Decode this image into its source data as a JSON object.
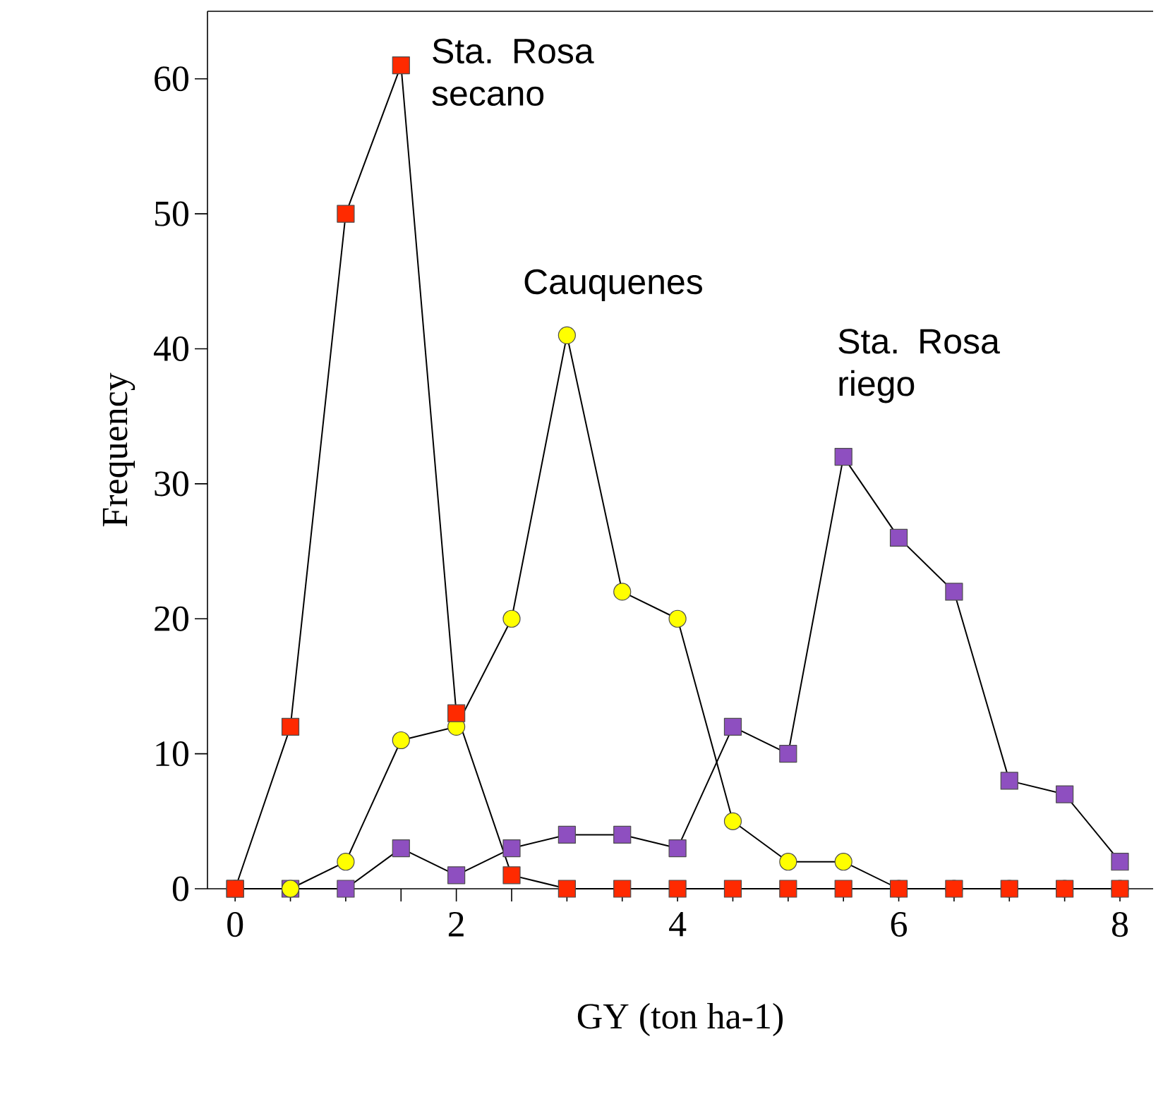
{
  "chart_data": {
    "type": "line",
    "xlabel": "GY (ton ha-1)",
    "ylabel": "Frequency",
    "x": [
      0,
      0.5,
      1,
      1.5,
      2,
      2.5,
      3,
      3.5,
      4,
      4.5,
      5,
      5.5,
      6,
      6.5,
      7,
      7.5,
      8
    ],
    "series": [
      {
        "name": "Sta. Rosa riego",
        "color": "#8e4fc0",
        "marker": "square",
        "values": [
          0,
          0,
          0,
          3,
          1,
          3,
          4,
          4,
          3,
          12,
          10,
          32,
          26,
          22,
          8,
          7,
          2
        ]
      },
      {
        "name": "Cauquenes",
        "color": "#ffff00",
        "marker": "circle",
        "values": [
          0,
          0,
          2,
          11,
          12,
          20,
          41,
          22,
          20,
          5,
          2,
          2,
          0,
          0,
          0,
          0,
          0
        ]
      },
      {
        "name": "Sta. Rosa secano",
        "color": "#ff2a00",
        "marker": "square",
        "values": [
          0,
          12,
          50,
          61,
          13,
          1,
          0,
          0,
          0,
          0,
          0,
          0,
          0,
          0,
          0,
          0,
          0
        ]
      }
    ],
    "xlim": [
      -0.25,
      8.3
    ],
    "ylim": [
      0,
      65
    ],
    "xticks": [
      0,
      {
        "value": 0.5,
        "label": null
      },
      2,
      {
        "value": 1.5,
        "label": null
      },
      {
        "value": 1,
        "label": null
      },
      {
        "value": 2.5,
        "label": null
      },
      {
        "value": 3,
        "label": null
      },
      {
        "value": 3.5,
        "label": null
      },
      4,
      {
        "value": 4.5,
        "label": null
      },
      {
        "value": 5,
        "label": null
      },
      {
        "value": 5.5,
        "label": null
      },
      6,
      {
        "value": 6.5,
        "label": null
      },
      {
        "value": 7,
        "label": null
      },
      {
        "value": 7.5,
        "label": null
      },
      8
    ],
    "yticks": [
      0,
      10,
      20,
      30,
      40,
      50,
      60
    ],
    "line_style": "solid",
    "legend": false,
    "grid": false
  }
}
